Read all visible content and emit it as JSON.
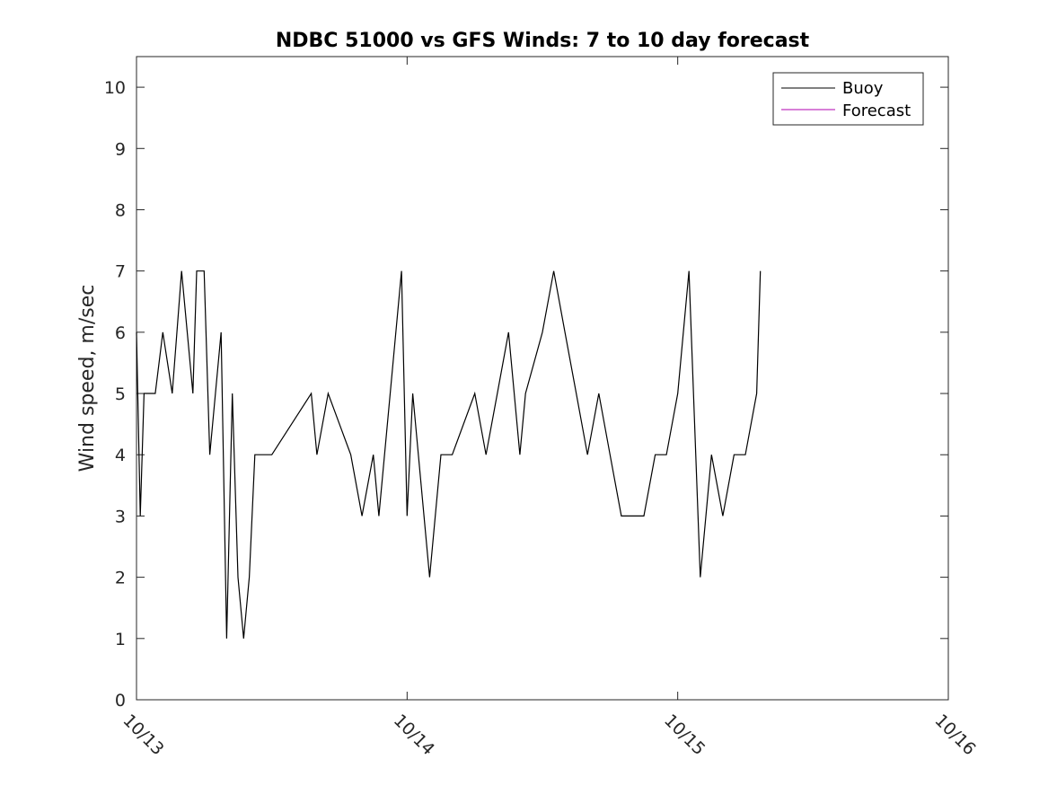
{
  "chart_data": {
    "type": "line",
    "title": "NDBC 51000 vs GFS Winds: 7 to 10 day forecast",
    "ylabel": "Wind speed, m/sec",
    "xlabel": "",
    "ylim": [
      0,
      10.5
    ],
    "xlim": [
      "10/13",
      "10/16"
    ],
    "x_ticks": [
      "10/13",
      "10/14",
      "10/15",
      "10/16"
    ],
    "y_ticks": [
      "0",
      "1",
      "2",
      "3",
      "4",
      "5",
      "6",
      "7",
      "8",
      "9",
      "10"
    ],
    "grid": false,
    "legend_position": "top-right",
    "series": [
      {
        "name": "Buoy",
        "color": "#000000",
        "x": [
          "10/13 00:00",
          "10/13 00:20",
          "10/13 00:40",
          "10/13 01:00",
          "10/13 01:40",
          "10/13 02:20",
          "10/13 03:10",
          "10/13 04:00",
          "10/13 04:30",
          "10/13 05:00",
          "10/13 05:20",
          "10/13 06:00",
          "10/13 06:30",
          "10/13 07:00",
          "10/13 07:30",
          "10/13 08:00",
          "10/13 08:30",
          "10/13 09:00",
          "10/13 09:30",
          "10/13 10:00",
          "10/13 10:30",
          "10/13 12:00",
          "10/13 15:30",
          "10/13 16:00",
          "10/13 17:00",
          "10/13 19:00",
          "10/13 20:00",
          "10/13 21:00",
          "10/13 21:30",
          "10/13 23:30",
          "10/14 00:00",
          "10/14 00:30",
          "10/14 02:00",
          "10/14 03:00",
          "10/14 04:00",
          "10/14 06:00",
          "10/14 07:00",
          "10/14 08:00",
          "10/14 09:00",
          "10/14 10:00",
          "10/14 10:30",
          "10/14 12:00",
          "10/14 13:00",
          "10/14 14:00",
          "10/14 15:00",
          "10/14 16:00",
          "10/14 17:00",
          "10/14 18:00",
          "10/14 19:00",
          "10/14 20:00",
          "10/14 21:00",
          "10/14 22:00",
          "10/14 23:00",
          "10/15 00:00",
          "10/15 01:00",
          "10/15 02:00",
          "10/15 03:00",
          "10/15 04:00",
          "10/15 05:00",
          "10/15 06:00",
          "10/15 07:00",
          "10/15 07:20"
        ],
        "values": [
          6,
          3,
          5,
          5,
          5,
          6,
          5,
          7,
          6,
          5,
          7,
          7,
          4,
          5,
          6,
          1,
          5,
          2,
          1,
          2,
          4,
          4,
          5,
          4,
          5,
          4,
          3,
          4,
          3,
          7,
          3,
          5,
          2,
          4,
          4,
          5,
          4,
          5,
          6,
          4,
          5,
          6,
          7,
          6,
          5,
          4,
          5,
          4,
          3,
          3,
          3,
          4,
          4,
          5,
          7,
          2,
          4,
          3,
          4,
          4,
          5,
          7
        ]
      },
      {
        "name": "Forecast",
        "color": "#b000b0",
        "x": [],
        "values": []
      }
    ]
  }
}
